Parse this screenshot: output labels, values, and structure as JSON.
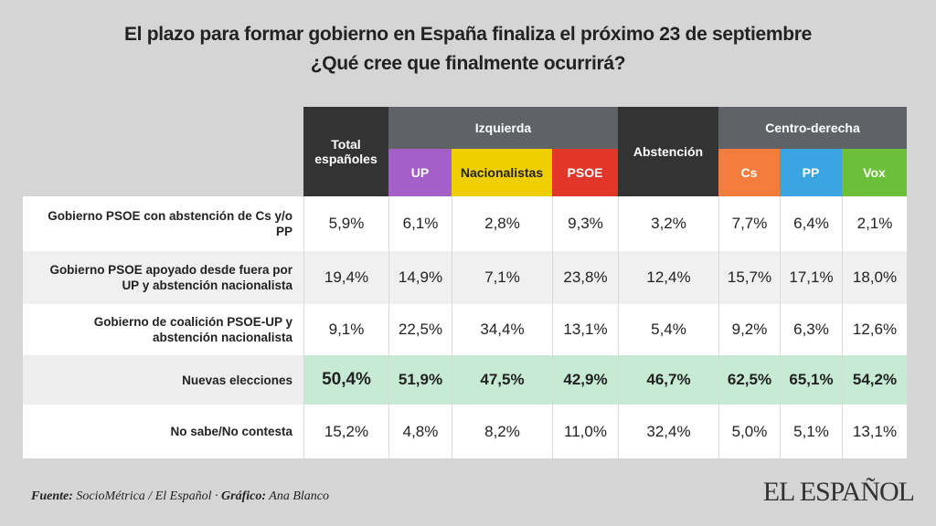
{
  "header": {
    "title": "El plazo para formar gobierno en España finaliza el próximo 23 de septiembre",
    "subtitle": "¿Qué cree que finalmente ocurrirá?"
  },
  "table": {
    "groups": [
      {
        "label": "Izquierda"
      },
      {
        "label": "Centro-derecha"
      }
    ],
    "columns": [
      "Total españoles",
      "UP",
      "Nacionalistas",
      "PSOE",
      "Abstención",
      "Cs",
      "PP",
      "Vox"
    ],
    "rows": [
      {
        "label": "Gobierno PSOE con abstención de Cs y/o PP",
        "cells": [
          "5,9%",
          "6,1%",
          "2,8%",
          "9,3%",
          "3,2%",
          "7,7%",
          "6,4%",
          "2,1%"
        ]
      },
      {
        "label": "Gobierno PSOE apoyado desde fuera por UP y abstención nacionalista",
        "cells": [
          "19,4%",
          "14,9%",
          "7,1%",
          "23,8%",
          "12,4%",
          "15,7%",
          "17,1%",
          "18,0%"
        ]
      },
      {
        "label": "Gobierno de coalición PSOE-UP y abstención nacionalista",
        "cells": [
          "9,1%",
          "22,5%",
          "34,4%",
          "13,1%",
          "5,4%",
          "9,2%",
          "6,3%",
          "12,6%"
        ]
      },
      {
        "label": "Nuevas elecciones",
        "cells": [
          "50,4%",
          "51,9%",
          "47,5%",
          "42,9%",
          "46,7%",
          "62,5%",
          "65,1%",
          "54,2%"
        ]
      },
      {
        "label": "No sabe/No contesta",
        "cells": [
          "15,2%",
          "4,8%",
          "8,2%",
          "11,0%",
          "32,4%",
          "5,0%",
          "5,1%",
          "13,1%"
        ]
      }
    ]
  },
  "footer": {
    "source_label": "Fuente:",
    "source": "SocioMétrica / El Español ·",
    "credit_label": "Gráfico:",
    "credit": "Ana Blanco"
  },
  "logo": "EL ESPAÑOL"
}
